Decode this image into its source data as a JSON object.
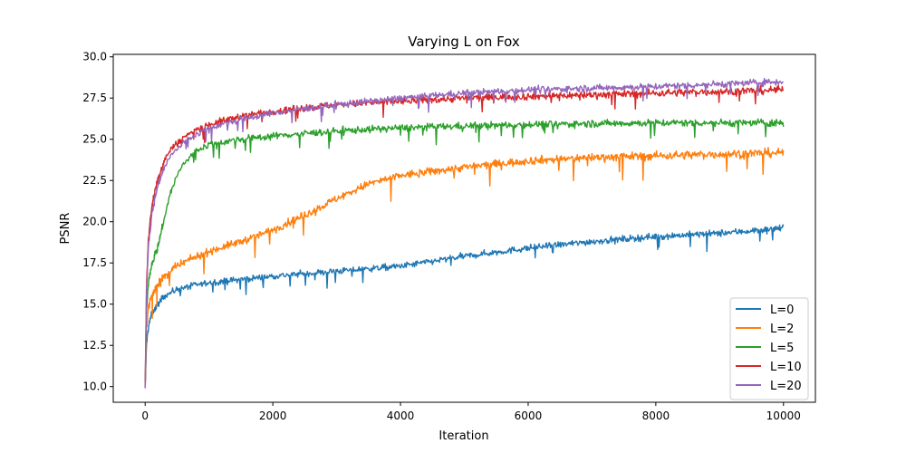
{
  "chart_data": {
    "type": "line",
    "title": "Varying L on Fox",
    "xlabel": "Iteration",
    "ylabel": "PSNR",
    "xlim": [
      -500,
      10500
    ],
    "ylim": [
      9.05,
      30.15
    ],
    "xticks": [
      0,
      2000,
      4000,
      6000,
      8000,
      10000
    ],
    "xtick_labels": [
      "0",
      "2000",
      "4000",
      "6000",
      "8000",
      "10000"
    ],
    "yticks": [
      10.0,
      12.5,
      15.0,
      17.5,
      20.0,
      22.5,
      25.0,
      27.5,
      30.0
    ],
    "ytick_labels": [
      "10.0",
      "12.5",
      "15.0",
      "17.5",
      "20.0",
      "22.5",
      "25.0",
      "27.5",
      "30.0"
    ],
    "grid": false,
    "legend_position": "lower-right",
    "series": [
      {
        "name": "L=0",
        "color": "#1f77b4",
        "noise": 0.18,
        "spike": 1.0,
        "spike_prob": 0.03,
        "noise_growth": 0.15,
        "start": 9.9,
        "x": [
          0,
          20,
          50,
          100,
          200,
          300,
          500,
          700,
          1000,
          1500,
          2000,
          3000,
          4000,
          5000,
          6000,
          7000,
          8000,
          9000,
          10000
        ],
        "y": [
          9.9,
          12.5,
          13.6,
          14.4,
          15.0,
          15.5,
          15.9,
          16.1,
          16.3,
          16.5,
          16.7,
          17.0,
          17.3,
          17.9,
          18.4,
          18.8,
          19.1,
          19.3,
          19.6
        ]
      },
      {
        "name": "L=2",
        "color": "#ff7f0e",
        "noise": 0.22,
        "spike": 1.4,
        "spike_prob": 0.03,
        "noise_growth": 0.2,
        "start": 9.9,
        "x": [
          0,
          20,
          50,
          100,
          200,
          300,
          500,
          700,
          1000,
          1500,
          2000,
          2500,
          3000,
          3500,
          4000,
          5000,
          6000,
          7000,
          8000,
          9000,
          10000
        ],
        "y": [
          9.9,
          13.5,
          14.8,
          15.5,
          16.2,
          16.7,
          17.3,
          17.7,
          18.2,
          18.8,
          19.5,
          20.4,
          21.4,
          22.3,
          22.8,
          23.3,
          23.7,
          23.9,
          24.0,
          24.1,
          24.2
        ]
      },
      {
        "name": "L=5",
        "color": "#2ca02c",
        "noise": 0.2,
        "spike": 0.9,
        "spike_prob": 0.035,
        "noise_growth": 0.1,
        "start": 9.9,
        "x": [
          0,
          20,
          50,
          100,
          150,
          200,
          300,
          400,
          500,
          600,
          800,
          1000,
          1500,
          2000,
          3000,
          4000,
          5000,
          6000,
          8000,
          10000
        ],
        "y": [
          9.9,
          14.5,
          16.3,
          17.4,
          18.0,
          18.5,
          20.2,
          21.8,
          22.8,
          23.5,
          24.3,
          24.7,
          25.0,
          25.2,
          25.5,
          25.7,
          25.8,
          25.9,
          26.0,
          26.0
        ]
      },
      {
        "name": "L=10",
        "color": "#d62728",
        "noise": 0.2,
        "spike": 0.9,
        "spike_prob": 0.035,
        "noise_growth": 0.2,
        "start": 9.9,
        "x": [
          0,
          20,
          50,
          100,
          150,
          200,
          300,
          400,
          600,
          800,
          1000,
          1500,
          2000,
          3000,
          4000,
          5000,
          6000,
          7000,
          8000,
          9000,
          10000
        ],
        "y": [
          9.9,
          16.0,
          19.0,
          20.8,
          21.8,
          22.6,
          23.7,
          24.4,
          25.1,
          25.6,
          25.9,
          26.4,
          26.7,
          27.1,
          27.3,
          27.5,
          27.6,
          27.7,
          27.8,
          27.9,
          28.0
        ]
      },
      {
        "name": "L=20",
        "color": "#9467bd",
        "noise": 0.18,
        "spike": 0.8,
        "spike_prob": 0.03,
        "noise_growth": 0.15,
        "start": 9.9,
        "x": [
          0,
          20,
          50,
          100,
          150,
          200,
          300,
          400,
          600,
          800,
          1000,
          1500,
          2000,
          3000,
          4000,
          5000,
          6000,
          7000,
          8000,
          9000,
          10000
        ],
        "y": [
          9.9,
          15.5,
          18.5,
          20.3,
          21.4,
          22.2,
          23.3,
          24.0,
          24.8,
          25.3,
          25.7,
          26.2,
          26.6,
          27.1,
          27.5,
          27.8,
          28.0,
          28.1,
          28.2,
          28.35,
          28.5
        ]
      }
    ]
  }
}
